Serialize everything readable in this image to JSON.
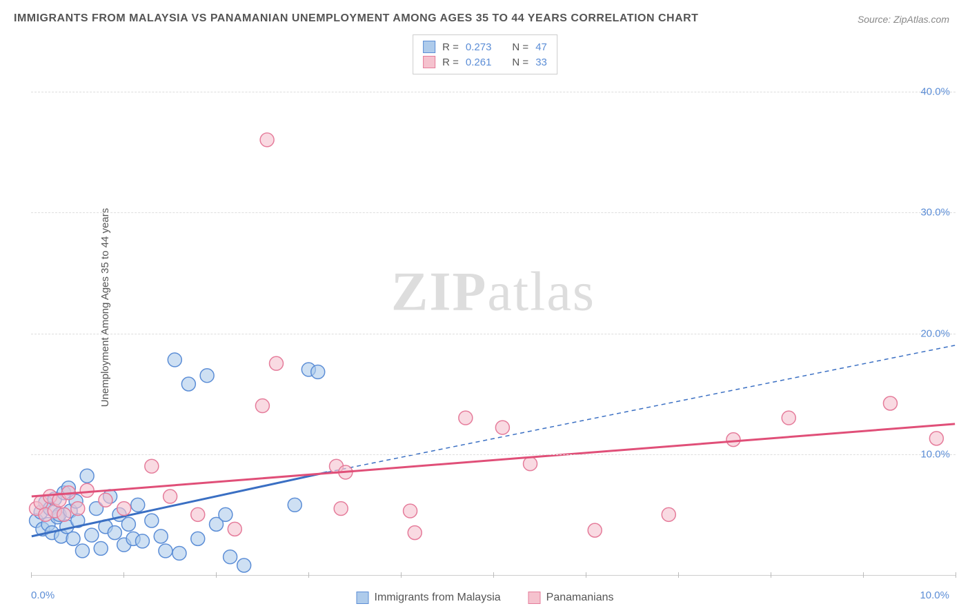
{
  "title": "IMMIGRANTS FROM MALAYSIA VS PANAMANIAN UNEMPLOYMENT AMONG AGES 35 TO 44 YEARS CORRELATION CHART",
  "source": "Source: ZipAtlas.com",
  "ylabel": "Unemployment Among Ages 35 to 44 years",
  "watermark_bold": "ZIP",
  "watermark_light": "atlas",
  "chart": {
    "type": "scatter",
    "xlim": [
      0,
      10
    ],
    "ylim": [
      0,
      45
    ],
    "xticks": [
      0,
      1,
      2,
      3,
      4,
      5,
      6,
      7,
      8,
      9,
      10
    ],
    "yticks": [
      10,
      20,
      30,
      40
    ],
    "ytick_labels": [
      "10.0%",
      "20.0%",
      "30.0%",
      "40.0%"
    ],
    "xtick_labels": {
      "first": "0.0%",
      "last": "10.0%"
    },
    "background": "#ffffff",
    "grid_color": "#dddddd",
    "axis_label_color": "#5b8dd6",
    "marker_radius": 10,
    "marker_stroke_width": 1.5,
    "series": [
      {
        "name": "Immigrants from Malaysia",
        "fill": "#aecbeb",
        "stroke": "#5b8dd6",
        "fill_opacity": 0.6,
        "R": "0.273",
        "N": "47",
        "trend": {
          "x1": 0,
          "y1": 3.2,
          "x2": 3.2,
          "y2": 8.5,
          "dash_x2": 10,
          "dash_y2": 19.0
        },
        "trend_color": "#3a6fc3",
        "trend_width": 3,
        "points": [
          [
            0.05,
            4.5
          ],
          [
            0.1,
            5.2
          ],
          [
            0.12,
            3.8
          ],
          [
            0.15,
            6.0
          ],
          [
            0.18,
            4.2
          ],
          [
            0.2,
            5.5
          ],
          [
            0.22,
            3.5
          ],
          [
            0.25,
            6.3
          ],
          [
            0.28,
            4.8
          ],
          [
            0.3,
            5.0
          ],
          [
            0.32,
            3.2
          ],
          [
            0.35,
            6.8
          ],
          [
            0.38,
            4.0
          ],
          [
            0.4,
            7.2
          ],
          [
            0.42,
            5.3
          ],
          [
            0.45,
            3.0
          ],
          [
            0.48,
            6.1
          ],
          [
            0.5,
            4.5
          ],
          [
            0.55,
            2.0
          ],
          [
            0.6,
            8.2
          ],
          [
            0.65,
            3.3
          ],
          [
            0.7,
            5.5
          ],
          [
            0.75,
            2.2
          ],
          [
            0.8,
            4.0
          ],
          [
            0.85,
            6.5
          ],
          [
            0.9,
            3.5
          ],
          [
            0.95,
            5.0
          ],
          [
            1.0,
            2.5
          ],
          [
            1.05,
            4.2
          ],
          [
            1.1,
            3.0
          ],
          [
            1.15,
            5.8
          ],
          [
            1.2,
            2.8
          ],
          [
            1.3,
            4.5
          ],
          [
            1.4,
            3.2
          ],
          [
            1.45,
            2.0
          ],
          [
            1.55,
            17.8
          ],
          [
            1.6,
            1.8
          ],
          [
            1.7,
            15.8
          ],
          [
            1.8,
            3.0
          ],
          [
            1.9,
            16.5
          ],
          [
            2.0,
            4.2
          ],
          [
            2.1,
            5.0
          ],
          [
            2.15,
            1.5
          ],
          [
            2.3,
            0.8
          ],
          [
            2.85,
            5.8
          ],
          [
            3.0,
            17.0
          ],
          [
            3.1,
            16.8
          ]
        ]
      },
      {
        "name": "Panamanians",
        "fill": "#f5c2ce",
        "stroke": "#e57b9a",
        "fill_opacity": 0.6,
        "R": "0.261",
        "N": "33",
        "trend": {
          "x1": 0,
          "y1": 6.5,
          "x2": 10,
          "y2": 12.5
        },
        "trend_color": "#e04f78",
        "trend_width": 3,
        "points": [
          [
            0.05,
            5.5
          ],
          [
            0.1,
            6.0
          ],
          [
            0.15,
            5.0
          ],
          [
            0.2,
            6.5
          ],
          [
            0.25,
            5.3
          ],
          [
            0.3,
            6.2
          ],
          [
            0.35,
            5.0
          ],
          [
            0.4,
            6.8
          ],
          [
            0.5,
            5.5
          ],
          [
            0.6,
            7.0
          ],
          [
            0.8,
            6.2
          ],
          [
            1.0,
            5.5
          ],
          [
            1.3,
            9.0
          ],
          [
            1.5,
            6.5
          ],
          [
            1.8,
            5.0
          ],
          [
            2.2,
            3.8
          ],
          [
            2.5,
            14.0
          ],
          [
            2.55,
            36.0
          ],
          [
            2.65,
            17.5
          ],
          [
            3.3,
            9.0
          ],
          [
            3.35,
            5.5
          ],
          [
            3.4,
            8.5
          ],
          [
            4.1,
            5.3
          ],
          [
            4.15,
            3.5
          ],
          [
            4.7,
            13.0
          ],
          [
            5.1,
            12.2
          ],
          [
            5.4,
            9.2
          ],
          [
            6.1,
            3.7
          ],
          [
            6.9,
            5.0
          ],
          [
            7.6,
            11.2
          ],
          [
            8.2,
            13.0
          ],
          [
            9.3,
            14.2
          ],
          [
            9.8,
            11.3
          ]
        ]
      }
    ],
    "legend_top": [
      {
        "swatch_fill": "#aecbeb",
        "swatch_stroke": "#5b8dd6",
        "r_label": "R =",
        "r_val": "0.273",
        "n_label": "N =",
        "n_val": "47"
      },
      {
        "swatch_fill": "#f5c2ce",
        "swatch_stroke": "#e57b9a",
        "r_label": "R =",
        "r_val": "0.261",
        "n_label": "N =",
        "n_val": "33"
      }
    ],
    "legend_bottom": [
      {
        "swatch_fill": "#aecbeb",
        "swatch_stroke": "#5b8dd6",
        "label": "Immigrants from Malaysia"
      },
      {
        "swatch_fill": "#f5c2ce",
        "swatch_stroke": "#e57b9a",
        "label": "Panamanians"
      }
    ]
  }
}
